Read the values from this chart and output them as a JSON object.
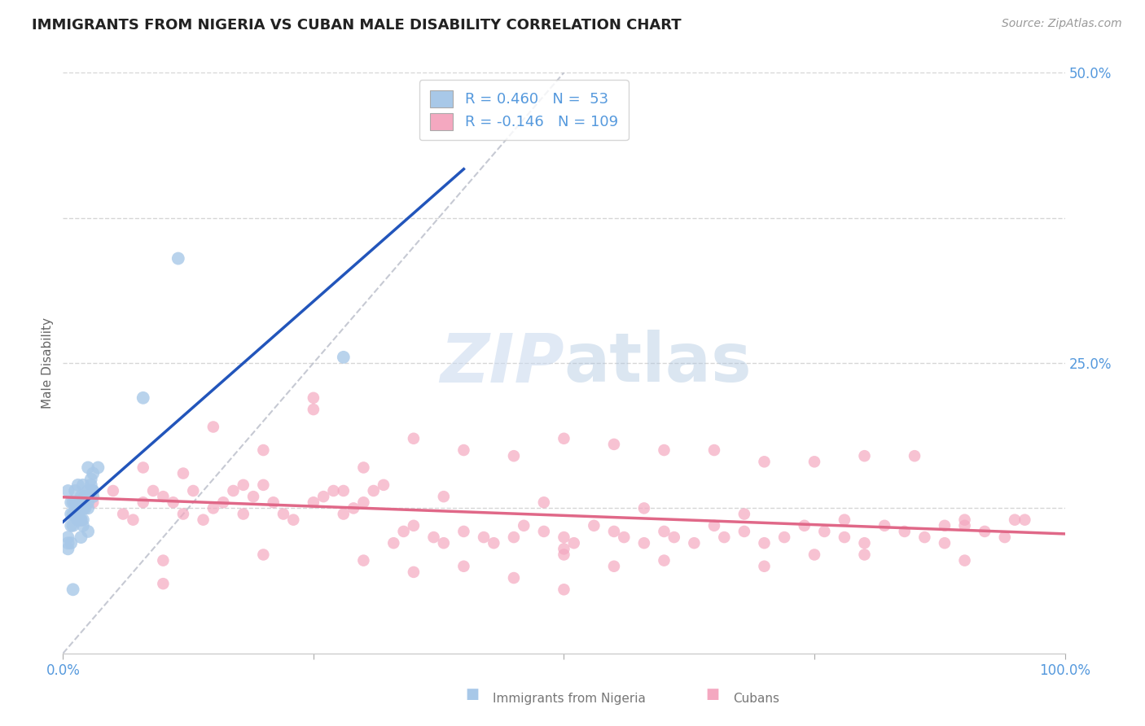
{
  "title": "IMMIGRANTS FROM NIGERIA VS CUBAN MALE DISABILITY CORRELATION CHART",
  "source_text": "Source: ZipAtlas.com",
  "ylabel": "Male Disability",
  "legend_label_1": "Immigrants from Nigeria",
  "legend_label_2": "Cubans",
  "R1": 0.46,
  "N1": 53,
  "R2": -0.146,
  "N2": 109,
  "color1": "#a8c8e8",
  "color2": "#f4a8c0",
  "trend_color1": "#2255bb",
  "trend_color2": "#e06888",
  "ref_line_color": "#b8bcc8",
  "grid_color": "#cccccc",
  "axis_tick_color": "#5599dd",
  "title_color": "#222222",
  "source_color": "#999999",
  "watermark_zip_color": "#c8d8ee",
  "watermark_atlas_color": "#b0c8e0",
  "xlim": [
    0.0,
    1.0
  ],
  "ylim": [
    0.0,
    0.5
  ],
  "nigeria_x": [
    0.008,
    0.012,
    0.015,
    0.018,
    0.02,
    0.022,
    0.025,
    0.01,
    0.015,
    0.005,
    0.02,
    0.025,
    0.018,
    0.012,
    0.008,
    0.015,
    0.022,
    0.018,
    0.01,
    0.005,
    0.02,
    0.025,
    0.03,
    0.015,
    0.012,
    0.008,
    0.025,
    0.02,
    0.018,
    0.015,
    0.03,
    0.005,
    0.012,
    0.022,
    0.018,
    0.01,
    0.028,
    0.03,
    0.02,
    0.025,
    0.008,
    0.005,
    0.03,
    0.015,
    0.02,
    0.028,
    0.035,
    0.022,
    0.015,
    0.01,
    0.08,
    0.115,
    0.28
  ],
  "nigeria_y": [
    0.13,
    0.14,
    0.12,
    0.115,
    0.11,
    0.135,
    0.125,
    0.13,
    0.12,
    0.14,
    0.115,
    0.105,
    0.1,
    0.13,
    0.12,
    0.145,
    0.135,
    0.115,
    0.11,
    0.09,
    0.125,
    0.13,
    0.14,
    0.115,
    0.12,
    0.095,
    0.16,
    0.145,
    0.13,
    0.115,
    0.14,
    0.095,
    0.12,
    0.125,
    0.135,
    0.12,
    0.15,
    0.155,
    0.13,
    0.14,
    0.11,
    0.1,
    0.135,
    0.12,
    0.125,
    0.145,
    0.16,
    0.135,
    0.115,
    0.055,
    0.22,
    0.34,
    0.255
  ],
  "cuban_x": [
    0.03,
    0.05,
    0.06,
    0.07,
    0.08,
    0.09,
    0.1,
    0.11,
    0.12,
    0.13,
    0.14,
    0.15,
    0.16,
    0.17,
    0.18,
    0.19,
    0.2,
    0.21,
    0.22,
    0.23,
    0.25,
    0.26,
    0.27,
    0.28,
    0.29,
    0.3,
    0.31,
    0.32,
    0.33,
    0.34,
    0.35,
    0.37,
    0.38,
    0.4,
    0.42,
    0.43,
    0.45,
    0.46,
    0.48,
    0.5,
    0.51,
    0.53,
    0.55,
    0.56,
    0.58,
    0.6,
    0.61,
    0.63,
    0.65,
    0.66,
    0.68,
    0.7,
    0.72,
    0.74,
    0.76,
    0.78,
    0.8,
    0.82,
    0.84,
    0.86,
    0.88,
    0.9,
    0.92,
    0.94,
    0.96,
    0.12,
    0.2,
    0.3,
    0.4,
    0.5,
    0.6,
    0.7,
    0.8,
    0.35,
    0.45,
    0.55,
    0.1,
    0.2,
    0.3,
    0.4,
    0.5,
    0.6,
    0.7,
    0.8,
    0.9,
    0.15,
    0.25,
    0.35,
    0.45,
    0.55,
    0.65,
    0.75,
    0.85,
    0.95,
    0.08,
    0.18,
    0.28,
    0.38,
    0.48,
    0.58,
    0.68,
    0.78,
    0.88,
    0.25,
    0.5,
    0.75,
    0.1,
    0.9,
    0.5
  ],
  "cuban_y": [
    0.13,
    0.14,
    0.12,
    0.115,
    0.16,
    0.14,
    0.135,
    0.13,
    0.12,
    0.14,
    0.115,
    0.125,
    0.13,
    0.14,
    0.12,
    0.135,
    0.145,
    0.13,
    0.12,
    0.115,
    0.13,
    0.135,
    0.14,
    0.12,
    0.125,
    0.13,
    0.14,
    0.145,
    0.095,
    0.105,
    0.11,
    0.1,
    0.095,
    0.105,
    0.1,
    0.095,
    0.1,
    0.11,
    0.105,
    0.1,
    0.095,
    0.11,
    0.105,
    0.1,
    0.095,
    0.105,
    0.1,
    0.095,
    0.11,
    0.1,
    0.105,
    0.095,
    0.1,
    0.11,
    0.105,
    0.1,
    0.095,
    0.11,
    0.105,
    0.1,
    0.095,
    0.11,
    0.105,
    0.1,
    0.115,
    0.155,
    0.175,
    0.16,
    0.175,
    0.185,
    0.175,
    0.165,
    0.17,
    0.07,
    0.065,
    0.075,
    0.08,
    0.085,
    0.08,
    0.075,
    0.085,
    0.08,
    0.075,
    0.085,
    0.08,
    0.195,
    0.22,
    0.185,
    0.17,
    0.18,
    0.175,
    0.165,
    0.17,
    0.115,
    0.13,
    0.145,
    0.14,
    0.135,
    0.13,
    0.125,
    0.12,
    0.115,
    0.11,
    0.21,
    0.09,
    0.085,
    0.06,
    0.115,
    0.055
  ]
}
